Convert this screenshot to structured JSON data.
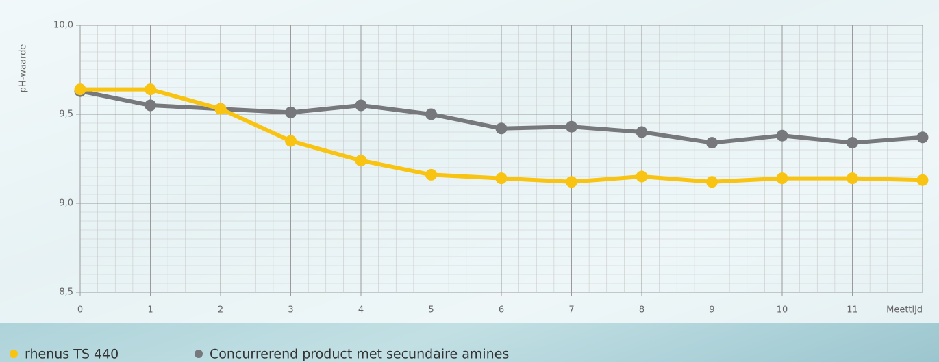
{
  "chart_data": {
    "type": "line",
    "y_label": "pH-waarde",
    "x_label": "Meettijd",
    "x": [
      0,
      1,
      2,
      3,
      4,
      5,
      6,
      7,
      8,
      9,
      10,
      11,
      12
    ],
    "series": [
      {
        "name": "rhenus TS 440",
        "color": "#f8c411",
        "values": [
          9.64,
          9.64,
          9.53,
          9.35,
          9.24,
          9.16,
          9.14,
          9.12,
          9.15,
          9.12,
          9.14,
          9.14,
          9.13
        ]
      },
      {
        "name": "Concurrerend product met secundaire amines",
        "color": "#77787b",
        "values": [
          9.63,
          9.55,
          9.53,
          9.51,
          9.55,
          9.5,
          9.42,
          9.43,
          9.4,
          9.34,
          9.38,
          9.34,
          9.37
        ]
      }
    ],
    "xlim": [
      0,
      12
    ],
    "xticks": [
      0,
      1,
      2,
      3,
      4,
      5,
      6,
      7,
      8,
      9,
      10,
      11
    ],
    "ylim": [
      8.5,
      10
    ],
    "yticks": [
      {
        "value": 8.5,
        "label": "8,5"
      },
      {
        "value": 9,
        "label": "9,0"
      },
      {
        "value": 9.5,
        "label": "9,5"
      },
      {
        "value": 10,
        "label": "10,0"
      }
    ],
    "grid": true
  }
}
